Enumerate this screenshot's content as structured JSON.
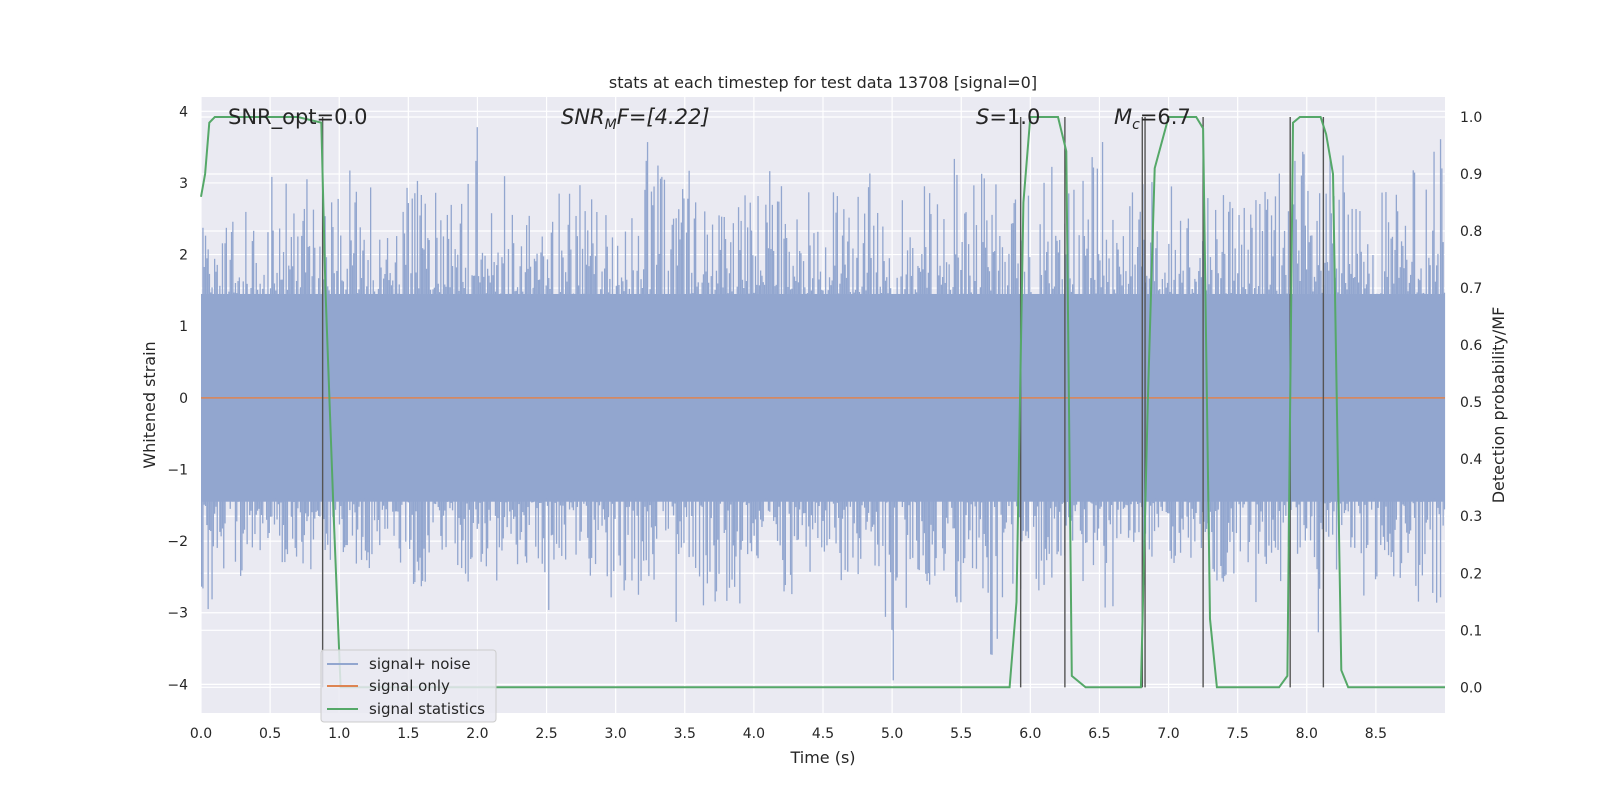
{
  "chart_data": {
    "type": "line",
    "title": "stats at each timestep for test data 13708 [signal=0]",
    "xlabel": "Time (s)",
    "ylabel_left": "Whitened strain",
    "ylabel_right": "Detection probability/MF",
    "xlim": [
      0.0,
      9.0
    ],
    "ylim_left": [
      -4.4,
      4.2
    ],
    "ylim_right": [
      -0.045,
      1.035
    ],
    "x_ticks": [
      "0.0",
      "0.5",
      "1.0",
      "1.5",
      "2.0",
      "2.5",
      "3.0",
      "3.5",
      "4.0",
      "4.5",
      "5.0",
      "5.5",
      "6.0",
      "6.5",
      "7.0",
      "7.5",
      "8.0",
      "8.5"
    ],
    "y_ticks_left": [
      "4",
      "3",
      "2",
      "1",
      "0",
      "−1",
      "−2",
      "−3",
      "−4"
    ],
    "y_ticks_right": [
      "1.0",
      "0.9",
      "0.8",
      "0.7",
      "0.6",
      "0.5",
      "0.4",
      "0.3",
      "0.2",
      "0.1",
      "0.0"
    ],
    "grid": true,
    "legend_placement": "lower-left",
    "annotations": {
      "snr_opt": "SNR_opt=0.0",
      "snr_mf_sym": "SNR",
      "snr_mf_sub": "M",
      "snr_mf_tail": "F=[4.22]",
      "s_sym": "S",
      "s_tail": "=1.0",
      "mc_sym": "M",
      "mc_sub": "c",
      "mc_tail": "=6.7"
    },
    "series": [
      {
        "name": "signal+ noise",
        "color": "#92a6cf",
        "description_values": "noise envelope",
        "envelope_max": [
          2.4,
          3.1,
          2.6,
          2.8,
          3.3,
          3.0,
          3.5,
          3.2,
          3.6,
          3.0,
          2.5,
          2.8,
          3.2,
          2.9,
          3.0,
          3.4,
          3.8,
          3.1,
          2.7,
          3.0,
          3.3,
          2.9,
          3.1,
          2.6,
          3.0,
          2.8,
          3.6,
          3.1,
          3.2,
          2.7,
          2.8,
          3.3,
          2.9,
          3.3,
          3.0,
          3.5,
          3.0,
          2.9,
          3.1,
          3.2,
          3.1,
          2.8,
          3.0,
          3.3,
          3.4,
          3.2,
          3.0,
          2.9,
          3.4,
          3.3,
          3.3,
          3.1,
          3.6,
          3.0,
          3.1,
          3.3,
          3.1,
          3.2,
          3.5,
          3.1,
          3.3,
          3.0,
          3.1,
          3.5,
          3.6,
          3.2,
          3.4,
          3.0,
          3.4,
          2.9,
          3.1,
          3.2,
          3.7
        ],
        "envelope_min": [
          -3.1,
          -2.7,
          -2.5,
          -2.4,
          -2.6,
          -2.8,
          -2.5,
          -2.3,
          -2.6,
          -2.4,
          -2.2,
          -2.4,
          -2.9,
          -2.6,
          -2.3,
          -2.7,
          -2.5,
          -2.8,
          -2.4,
          -2.5,
          -3.1,
          -2.7,
          -2.6,
          -2.5,
          -3.0,
          -2.8,
          -2.6,
          -3.2,
          -2.7,
          -3.4,
          -2.9,
          -3.0,
          -2.6,
          -2.7,
          -3.2,
          -2.6,
          -2.4,
          -2.7,
          -2.7,
          -2.6,
          -4.0,
          -3.0,
          -2.8,
          -2.6,
          -3.1,
          -2.7,
          -3.6,
          -3.0,
          -2.8,
          -2.7,
          -2.4,
          -2.8,
          -2.6,
          -3.2,
          -2.5,
          -2.8,
          -2.9,
          -2.7,
          -2.9,
          -2.8,
          -2.6,
          -3.2,
          -2.7,
          -2.9,
          -2.6,
          -3.3,
          -2.5,
          -2.6,
          -2.9,
          -2.7,
          -2.6,
          -2.9,
          -3.0
        ]
      },
      {
        "name": "signal only",
        "color": "#dd8452",
        "x": [
          0.0,
          9.0
        ],
        "y": [
          0.0,
          0.0
        ]
      },
      {
        "name": "signal statistics",
        "color": "#55a868",
        "axis": "right",
        "x": [
          0.0,
          0.03,
          0.06,
          0.1,
          0.3,
          0.5,
          0.7,
          0.87,
          0.9,
          0.96,
          1.01,
          1.1,
          2.0,
          3.0,
          4.0,
          5.0,
          5.85,
          5.9,
          5.95,
          6.0,
          6.05,
          6.2,
          6.26,
          6.3,
          6.4,
          6.7,
          6.8,
          6.85,
          6.9,
          7.0,
          7.1,
          7.2,
          7.25,
          7.3,
          7.35,
          7.5,
          7.8,
          7.86,
          7.9,
          7.95,
          8.0,
          8.1,
          8.14,
          8.19,
          8.25,
          8.3,
          9.0
        ],
        "y": [
          0.86,
          0.9,
          0.99,
          1.0,
          1.0,
          1.0,
          1.0,
          0.99,
          0.7,
          0.3,
          0.0,
          0.0,
          0.0,
          0.0,
          0.0,
          0.0,
          0.0,
          0.15,
          0.85,
          1.0,
          1.0,
          1.0,
          0.94,
          0.02,
          0.0,
          0.0,
          0.0,
          0.5,
          0.91,
          1.0,
          1.0,
          1.0,
          0.98,
          0.12,
          0.0,
          0.0,
          0.0,
          0.02,
          0.99,
          1.0,
          1.0,
          1.0,
          0.97,
          0.9,
          0.03,
          0.0,
          0.0
        ]
      }
    ],
    "vertical_markers_x": [
      0.88,
      5.93,
      6.25,
      6.81,
      6.83,
      7.25,
      7.88,
      8.12
    ]
  }
}
